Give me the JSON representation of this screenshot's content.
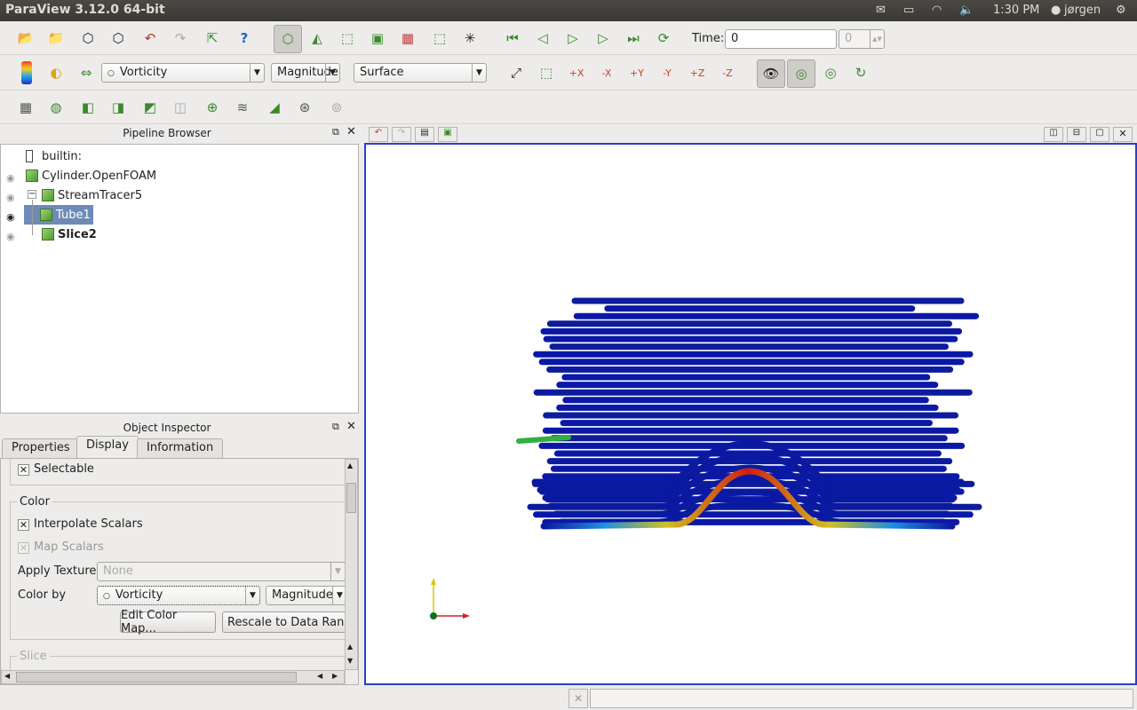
{
  "topbar": {
    "title": "ParaView 3.12.0 64-bit",
    "time": "1:30 PM",
    "user": "jørgen"
  },
  "toolbar": {
    "time_label": "Time:",
    "time_value": "0",
    "time_index": "0",
    "color_array": "Vorticity",
    "color_component": "Magnitude",
    "representation": "Surface"
  },
  "pipeline": {
    "title": "Pipeline Browser",
    "items": [
      {
        "label": "builtin:"
      },
      {
        "label": "Cylinder.OpenFOAM"
      },
      {
        "label": "StreamTracer5"
      },
      {
        "label": "Tube1"
      },
      {
        "label": "Slice2"
      }
    ]
  },
  "inspector": {
    "title": "Object Inspector",
    "tabs": [
      "Properties",
      "Display",
      "Information"
    ],
    "selectable_label": "Selectable",
    "color_group": "Color",
    "interpolate_label": "Interpolate Scalars",
    "map_scalars_label": "Map Scalars",
    "apply_texture_label": "Apply Texture",
    "apply_texture_value": "None",
    "color_by_label": "Color by",
    "color_by_value": "Vorticity",
    "color_by_component": "Magnitude",
    "edit_colormap_label": "Edit Color Map...",
    "rescale_label": "Rescale to Data Range",
    "slice_group": "Slice"
  },
  "colors": {
    "accent": "#2a3fc8",
    "tube_blue": "#0a1aa0",
    "selection": "#6e8bb8"
  }
}
